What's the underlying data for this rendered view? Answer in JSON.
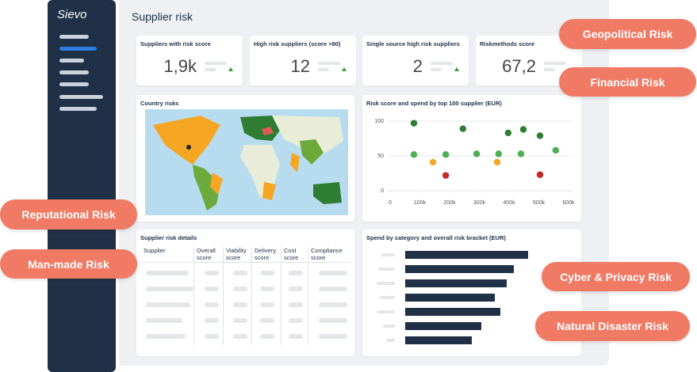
{
  "sidebar": {
    "logo": "Sievo"
  },
  "header": {
    "title": "Supplier risk"
  },
  "kpis": [
    {
      "title": "Suppliers with risk score",
      "value": "1,9k"
    },
    {
      "title": "High risk suppliers (score >80)",
      "value": "12"
    },
    {
      "title": "Single source high risk suppliers",
      "value": "2"
    },
    {
      "title": "Riskmethods score",
      "value": "67,2"
    }
  ],
  "map_card": {
    "title": "Country risks"
  },
  "chart_data": {
    "type": "scatter",
    "title": "Risk score and spend by top 100 supplier (EUR)",
    "x": [
      80000,
      80000,
      144000,
      187000,
      187000,
      245000,
      291000,
      360000,
      365000,
      397000,
      440000,
      448000,
      504000,
      504000,
      557000
    ],
    "values": [
      97,
      52,
      41,
      52,
      22,
      89,
      53,
      41,
      53,
      83,
      53,
      88,
      79,
      23,
      58
    ],
    "colors": [
      "#2e7d32",
      "#4caf50",
      "#f5a623",
      "#4caf50",
      "#c62828",
      "#2e7d32",
      "#4caf50",
      "#f5a623",
      "#4caf50",
      "#2e7d32",
      "#4caf50",
      "#2e7d32",
      "#2e7d32",
      "#c62828",
      "#4caf50"
    ],
    "xlim": [
      0,
      600000
    ],
    "ylim": [
      0,
      100
    ],
    "xticks": [
      0,
      {
        "value": 100000,
        "label": "100k"
      },
      {
        "value": 200000,
        "label": "200k"
      },
      {
        "value": 300000,
        "label": "300k"
      },
      {
        "value": 400000,
        "label": "400k"
      },
      {
        "value": 500000,
        "label": "500k"
      },
      {
        "value": 600000,
        "label": "600k"
      }
    ],
    "yticks": [
      0,
      50,
      100
    ],
    "grid": true
  },
  "table": {
    "title": "Supplier risk details",
    "headers": [
      "Supplier",
      "Overall score",
      "Viability score",
      "Delivery score",
      "Cost score",
      "Compliance score"
    ]
  },
  "bar_card": {
    "title": "Spend by category and overall risk bracket (EUR)"
  },
  "risks": [
    "Geopolitical Risk",
    "Financial Risk",
    "Reputational Risk",
    "Man-made Risk",
    "Cyber & Privacy Risk",
    "Natural Disaster Risk"
  ]
}
